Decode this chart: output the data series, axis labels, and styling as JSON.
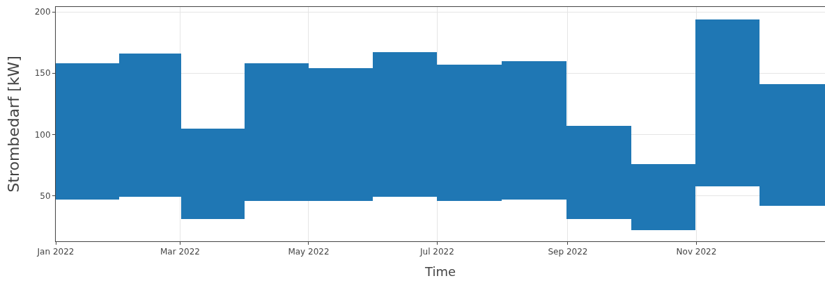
{
  "chart_data": {
    "type": "bar",
    "xlabel": "Time",
    "ylabel": "Strombedarf [kW]",
    "x": [
      "2022-01-16",
      "2022-02-15",
      "2022-03-16",
      "2022-04-16",
      "2022-05-16",
      "2022-06-16",
      "2022-07-16",
      "2022-08-16",
      "2022-09-16",
      "2022-10-16",
      "2022-11-16",
      "2022-12-16"
    ],
    "series": [
      {
        "color": "#1f77b4",
        "base": [
          47,
          49,
          31,
          46,
          46,
          49,
          46,
          47,
          31,
          22,
          58,
          42
        ],
        "values": [
          111,
          117,
          74,
          112,
          108,
          118,
          111,
          113,
          76,
          54,
          136,
          99
        ]
      }
    ],
    "xlim": [
      "2022-01-01",
      "2023-01-01"
    ],
    "xticks": [
      {
        "value": "2022-01-01",
        "label": "Jan 2022"
      },
      {
        "value": "2022-03-01",
        "label": "Mar 2022"
      },
      {
        "value": "2022-05-01",
        "label": "May 2022"
      },
      {
        "value": "2022-07-01",
        "label": "Jul 2022"
      },
      {
        "value": "2022-09-01",
        "label": "Sep 2022"
      },
      {
        "value": "2022-11-01",
        "label": "Nov 2022"
      }
    ],
    "ylim": [
      13,
      204
    ],
    "yticks": [
      50,
      100,
      150,
      200
    ],
    "grid": true
  }
}
